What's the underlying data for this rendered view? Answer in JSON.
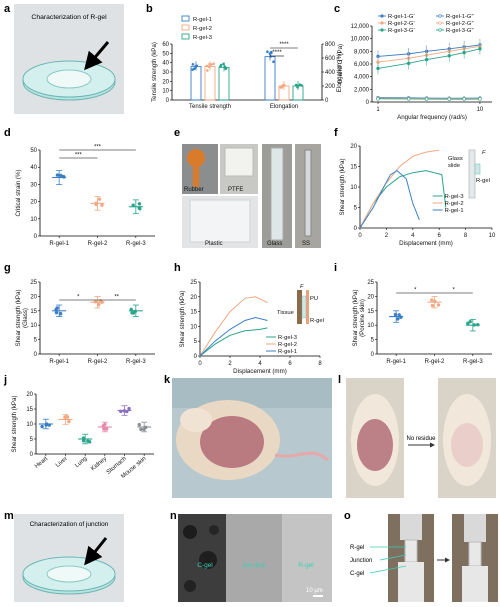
{
  "colors": {
    "rgel1": "#3a7fc6",
    "rgel2": "#f2a882",
    "rgel3": "#2aa48a",
    "pu": "#e87b4a"
  },
  "panels": {
    "a": {
      "letter": "a",
      "label": "Characterization of R-gel"
    },
    "b": {
      "letter": "b",
      "ylabel_left": "Tensile strength (kPa)",
      "ylabel_right": "Elongation (%)",
      "yticks_left": [
        "0",
        "10",
        "20",
        "30",
        "40",
        "50",
        "60"
      ],
      "yticks_right": [
        "0",
        "200",
        "400",
        "600",
        "800"
      ],
      "groups": [
        "Tensile strength",
        "Elongation"
      ],
      "legend": [
        "R-gel-1",
        "R-gel-2",
        "R-gel-3"
      ],
      "sig": [
        "****",
        "****"
      ]
    },
    "c": {
      "letter": "c",
      "ylabel": "G′ and G″ (Pa)",
      "xlabel": "Angular frequency (rad/s)",
      "yticks": [
        "0",
        "2,000",
        "4,000",
        "6,000",
        "8,000",
        "10,000",
        "12,000"
      ],
      "xticks": [
        "1",
        "10"
      ],
      "legend": [
        "R-gel-1-G′",
        "R-gel-1-G″",
        "R-gel-2-G′",
        "R-gel-2-G″",
        "R-gel-3-G′",
        "R-gel-3-G″"
      ]
    },
    "d": {
      "letter": "d",
      "ylabel": "Critical strain (%)",
      "yticks": [
        "0",
        "10",
        "20",
        "30",
        "40",
        "50"
      ],
      "categories": [
        "R-gel-1",
        "R-gel-2",
        "R-gel-3"
      ],
      "sig": [
        "***",
        "***"
      ]
    },
    "e": {
      "letter": "e",
      "labels": [
        "Rubber",
        "PTFE",
        "Plastic",
        "Glass",
        "SS"
      ]
    },
    "f": {
      "letter": "f",
      "ylabel": "Shear strength (kPa)",
      "xlabel": "Displacement (mm)",
      "yticks": [
        "0",
        "5",
        "10",
        "15",
        "20"
      ],
      "xticks": [
        "0",
        "2",
        "4",
        "6",
        "8",
        "10"
      ],
      "legend": [
        "R-gel-3",
        "R-gel-2",
        "R-gel-1"
      ],
      "inset": [
        "Glass",
        "slide",
        "R-gel",
        "F"
      ]
    },
    "g": {
      "letter": "g",
      "ylabel": "Shear strength (kPa)",
      "ylabel2": "(Glass)",
      "yticks": [
        "0",
        "5",
        "10",
        "15",
        "20",
        "25"
      ],
      "categories": [
        "R-gel-1",
        "R-gel-2",
        "R-gel-3"
      ],
      "sig": [
        "*",
        "**"
      ]
    },
    "h": {
      "letter": "h",
      "ylabel": "Shear strength (kPa)",
      "xlabel": "Displacement (mm)",
      "yticks": [
        "0",
        "5",
        "10",
        "15",
        "20",
        "25"
      ],
      "xticks": [
        "0",
        "2",
        "4",
        "6",
        "8"
      ],
      "legend": [
        "R-gel-3",
        "R-gel-2",
        "R-gel-1"
      ],
      "inset": [
        "F",
        "PU",
        "Tissue",
        "R-gel"
      ]
    },
    "i": {
      "letter": "i",
      "ylabel": "Shear strength (kPa)",
      "ylabel2": "(Porcine skin)",
      "yticks": [
        "0",
        "5",
        "10",
        "15",
        "20",
        "25"
      ],
      "categories": [
        "R-gel-1",
        "R-gel-2",
        "R-gel-3"
      ],
      "sig": [
        "*",
        "*"
      ]
    },
    "j": {
      "letter": "j",
      "ylabel": "Shear strength (kPa)",
      "yticks": [
        "0",
        "5",
        "10",
        "15",
        "20"
      ],
      "categories": [
        "Heart",
        "Liver",
        "Lung",
        "Kidney",
        "Stomach",
        "Mouse skin"
      ]
    },
    "k": {
      "letter": "k"
    },
    "l": {
      "letter": "l",
      "arrow_label": "No residue"
    },
    "m": {
      "letter": "m",
      "label": "Characterization of junction"
    },
    "n": {
      "letter": "n",
      "labels": [
        "C-gel",
        "Junction",
        "R-gel"
      ],
      "scale": "10 μm"
    },
    "o": {
      "letter": "o",
      "labels": [
        "R-gel",
        "Junction",
        "C-gel"
      ]
    }
  },
  "chart_data": [
    {
      "panel": "b",
      "type": "bar",
      "categories": [
        "Tensile strength",
        "Elongation"
      ],
      "series": [
        {
          "name": "R-gel-1",
          "values": [
            36,
            620
          ]
        },
        {
          "name": "R-gel-2",
          "values": [
            36,
            200
          ]
        },
        {
          "name": "R-gel-3",
          "values": [
            35,
            200
          ]
        }
      ],
      "ylim_left": [
        0,
        60
      ],
      "ylim_right": [
        0,
        800
      ]
    },
    {
      "panel": "c",
      "type": "line",
      "x": [
        1,
        2,
        3,
        5,
        7,
        10
      ],
      "xscale": "log",
      "series": [
        {
          "name": "R-gel-1-G′",
          "values": [
            7200,
            7600,
            8000,
            8400,
            8700,
            9000
          ]
        },
        {
          "name": "R-gel-1-G″",
          "values": [
            700,
            650,
            620,
            600,
            600,
            620
          ]
        },
        {
          "name": "R-gel-2-G′",
          "values": [
            6300,
            6900,
            7400,
            8000,
            8400,
            8800
          ]
        },
        {
          "name": "R-gel-2-G″",
          "values": [
            600,
            560,
            540,
            520,
            520,
            540
          ]
        },
        {
          "name": "R-gel-3-G′",
          "values": [
            5300,
            6100,
            6700,
            7300,
            7800,
            8400
          ]
        },
        {
          "name": "R-gel-3-G″",
          "values": [
            500,
            480,
            460,
            450,
            450,
            470
          ]
        }
      ],
      "ylim": [
        0,
        12000
      ]
    },
    {
      "panel": "d",
      "type": "bar",
      "categories": [
        "R-gel-1",
        "R-gel-2",
        "R-gel-3"
      ],
      "values": [
        34,
        19,
        17
      ],
      "ylim": [
        0,
        50
      ]
    },
    {
      "panel": "f",
      "type": "line",
      "xlim": [
        0,
        10
      ],
      "ylim": [
        0,
        20
      ],
      "series": [
        {
          "name": "R-gel-3",
          "points": [
            [
              0,
              0
            ],
            [
              1,
              6
            ],
            [
              2,
              10
            ],
            [
              3,
              12.5
            ],
            [
              4,
              13.5
            ],
            [
              5,
              14
            ],
            [
              6.2,
              13
            ],
            [
              6.5,
              5
            ]
          ]
        },
        {
          "name": "R-gel-2",
          "points": [
            [
              0,
              0
            ],
            [
              1,
              6
            ],
            [
              2,
              11
            ],
            [
              3,
              15
            ],
            [
              4,
              17.5
            ],
            [
              5,
              18.5
            ],
            [
              6,
              19
            ]
          ]
        },
        {
          "name": "R-gel-1",
          "points": [
            [
              0,
              0
            ],
            [
              1,
              5
            ],
            [
              1.8,
              10
            ],
            [
              2.3,
              13
            ],
            [
              2.8,
              14
            ],
            [
              3.5,
              12
            ],
            [
              4,
              6
            ],
            [
              4.5,
              2
            ]
          ]
        }
      ]
    },
    {
      "panel": "g",
      "type": "bar",
      "categories": [
        "R-gel-1",
        "R-gel-2",
        "R-gel-3"
      ],
      "values": [
        15,
        18,
        15
      ],
      "ylim": [
        0,
        25
      ]
    },
    {
      "panel": "h",
      "type": "line",
      "xlim": [
        0,
        8
      ],
      "ylim": [
        0,
        25
      ],
      "series": [
        {
          "name": "R-gel-3",
          "points": [
            [
              0,
              0
            ],
            [
              1,
              4
            ],
            [
              2,
              7
            ],
            [
              3,
              8.5
            ],
            [
              4,
              9
            ],
            [
              4.5,
              9.5
            ]
          ]
        },
        {
          "name": "R-gel-2",
          "points": [
            [
              0,
              0
            ],
            [
              1,
              8
            ],
            [
              2,
              15
            ],
            [
              3,
              19.5
            ],
            [
              3.7,
              20
            ],
            [
              4.5,
              18
            ]
          ]
        },
        {
          "name": "R-gel-1",
          "points": [
            [
              0,
              0
            ],
            [
              1,
              5
            ],
            [
              2,
              9
            ],
            [
              3,
              12
            ],
            [
              3.7,
              13
            ],
            [
              4.5,
              12
            ]
          ]
        }
      ]
    },
    {
      "panel": "i",
      "type": "bar",
      "categories": [
        "R-gel-1",
        "R-gel-2",
        "R-gel-3"
      ],
      "values": [
        13,
        18,
        10
      ],
      "ylim": [
        0,
        25
      ]
    },
    {
      "panel": "j",
      "type": "bar",
      "categories": [
        "Heart",
        "Liver",
        "Lung",
        "Kidney",
        "Stomach",
        "Mouse skin"
      ],
      "values": [
        10,
        11.5,
        5,
        9,
        14.5,
        9
      ],
      "ylim": [
        0,
        20
      ]
    }
  ]
}
